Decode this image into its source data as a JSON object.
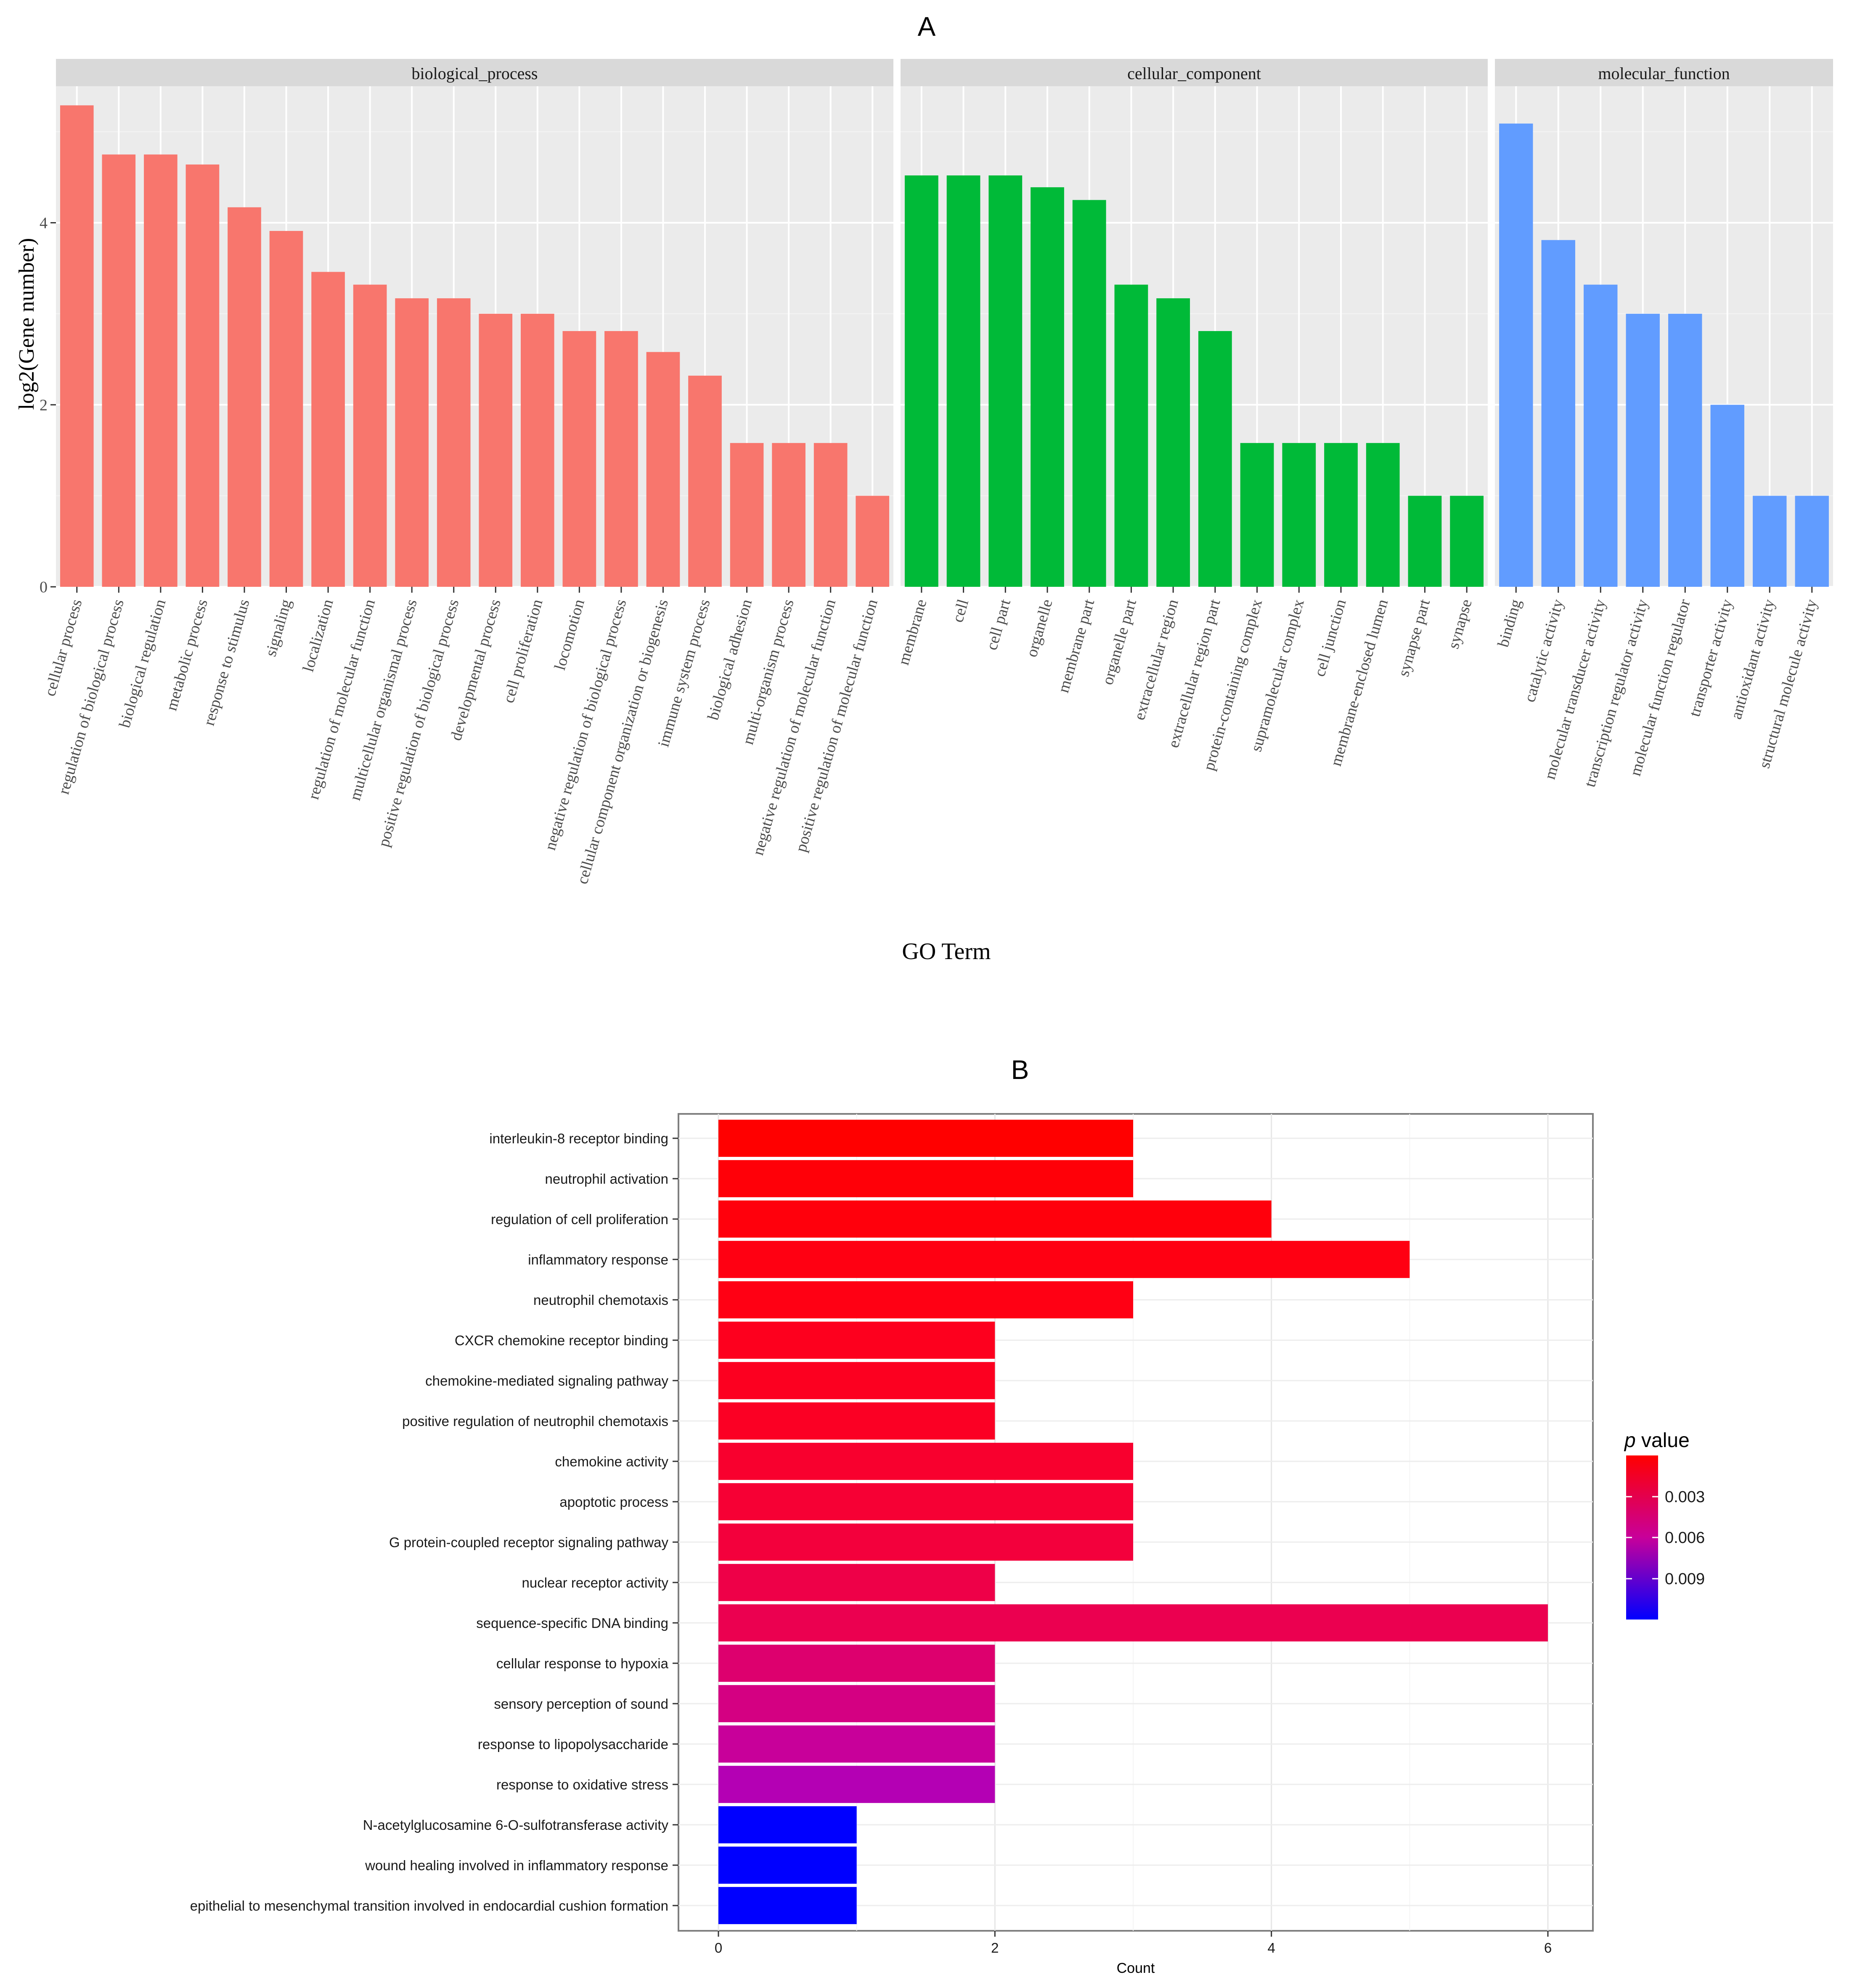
{
  "chart_data": [
    {
      "panel_label": "A",
      "type": "bar",
      "xlabel": "GO Term",
      "ylabel": "log2(Gene number)",
      "ylim": [
        0,
        5.5
      ],
      "yticks": [
        0,
        2,
        4
      ],
      "grid": true,
      "facets": [
        {
          "name": "biological_process",
          "color": "#F8766D",
          "categories": [
            "cellular process",
            "regulation of biological process",
            "biological regulation",
            "metabolic process",
            "response to stimulus",
            "signaling",
            "localization",
            "regulation of molecular function",
            "multicellular organismal process",
            "positive regulation of biological process",
            "developmental process",
            "cell proliferation",
            "locomotion",
            "negative regulation of biological process",
            "cellular component organization or biogenesis",
            "immune system process",
            "biological adhesion",
            "multi-organism process",
            "negative regulation of molecular function",
            "positive regulation of molecular function"
          ],
          "values": [
            5.29,
            4.75,
            4.75,
            4.64,
            4.17,
            3.91,
            3.46,
            3.32,
            3.17,
            3.17,
            3.0,
            3.0,
            2.81,
            2.81,
            2.58,
            2.32,
            1.58,
            1.58,
            1.58,
            1.0
          ]
        },
        {
          "name": "cellular_component",
          "color": "#00BA38",
          "categories": [
            "membrane",
            "cell",
            "cell part",
            "organelle",
            "membrane part",
            "organelle part",
            "extracellular region",
            "extracellular region part",
            "protein-containing complex",
            "supramolecular complex",
            "cell junction",
            "membrane-enclosed lumen",
            "synapse part",
            "synapse"
          ],
          "values": [
            4.52,
            4.52,
            4.52,
            4.39,
            4.25,
            3.32,
            3.17,
            2.81,
            1.58,
            1.58,
            1.58,
            1.58,
            1.0,
            1.0
          ]
        },
        {
          "name": "molecular_function",
          "color": "#619CFF",
          "categories": [
            "binding",
            "catalytic activity",
            "molecular transducer activity",
            "transcription regulator activity",
            "molecular function regulator",
            "transporter activity",
            "antioxidant activity",
            "structural molecule activity"
          ],
          "values": [
            5.09,
            3.81,
            3.32,
            3.0,
            3.0,
            2.0,
            1.0,
            1.0
          ]
        }
      ]
    },
    {
      "panel_label": "B",
      "type": "bar",
      "orientation": "horizontal",
      "xlabel": "Count",
      "xlim": [
        0,
        6.3
      ],
      "xticks": [
        0,
        2,
        4,
        6
      ],
      "grid": true,
      "legend": {
        "title_italic": "p",
        "title_rest": " value",
        "ticks": [
          "0.003",
          "0.006",
          "0.009"
        ],
        "colors": [
          "#FF0000",
          "#0000FF"
        ],
        "placement": "right"
      },
      "categories": [
        "interleukin-8 receptor binding",
        "neutrophil activation",
        "regulation of cell proliferation",
        "inflammatory response",
        "neutrophil chemotaxis",
        "CXCR chemokine receptor binding",
        "chemokine-mediated signaling pathway",
        "positive regulation of neutrophil chemotaxis",
        "chemokine activity",
        "apoptotic process",
        "G protein-coupled receptor signaling pathway",
        "nuclear receptor activity",
        "sequence-specific DNA binding",
        "cellular response to hypoxia",
        "sensory perception of sound",
        "response to lipopolysaccharide",
        "response to oxidative stress",
        "N-acetylglucosamine 6-O-sulfotransferase activity",
        "wound healing involved in inflammatory response",
        "epithelial to mesenchymal transition involved in endocardial cushion formation"
      ],
      "values": [
        3,
        3,
        4,
        5,
        3,
        2,
        2,
        2,
        3,
        3,
        3,
        2,
        6,
        2,
        2,
        2,
        2,
        1,
        1,
        1
      ],
      "colors": [
        "#FF0000",
        "#FF0008",
        "#FF000C",
        "#FF0012",
        "#FF0014",
        "#FD001E",
        "#FC0020",
        "#FB0024",
        "#F8002E",
        "#F60034",
        "#F3003C",
        "#EE0048",
        "#EB0050",
        "#DD006E",
        "#D40082",
        "#C8009A",
        "#B400B4",
        "#0000FF",
        "#0000FF",
        "#0000FF"
      ]
    }
  ]
}
